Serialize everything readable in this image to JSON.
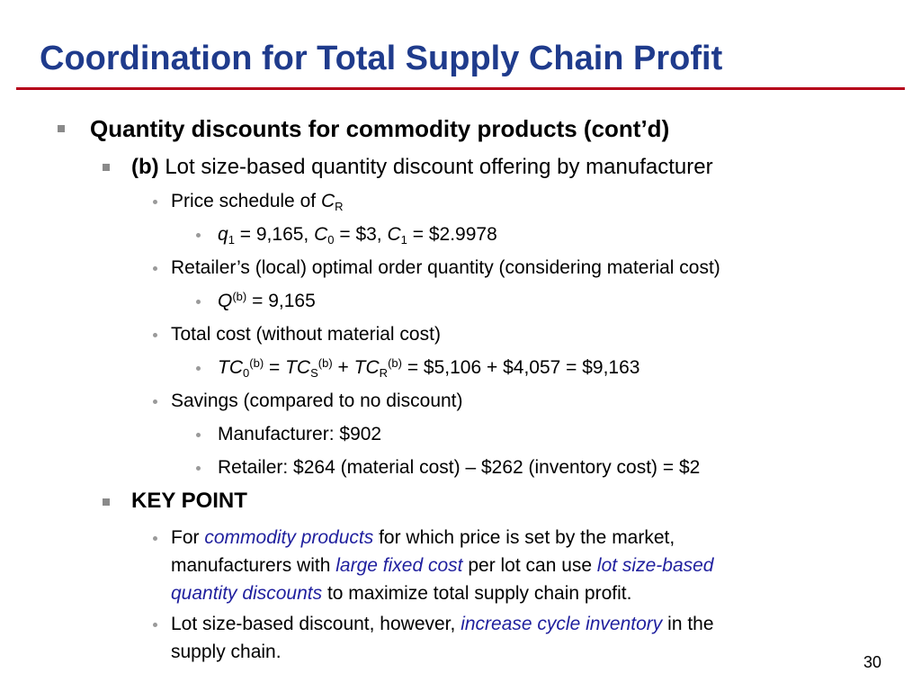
{
  "slide": {
    "title": "Coordination for Total Supply Chain Profit",
    "page_number": "30",
    "l0_heading": "Quantity discounts for commodity products (cont’d)",
    "b_label": "(b)",
    "b_text": "Lot size-based quantity discount offering by manufacturer",
    "price_schedule_text": "Price schedule of ",
    "price_schedule_var": "C",
    "price_schedule_sub": "R",
    "q1_var": "q",
    "q1_sub": "1",
    "q1_value": " = 9,165, ",
    "c0_var": "C",
    "c0_sub": "0",
    "c0_value": " = $3, ",
    "c1_var": "C",
    "c1_sub": "1",
    "c1_value": " = $2.9978",
    "retailer_opt_text": "Retailer’s (local) optimal order quantity (considering material cost)",
    "qb_var": "Q",
    "qb_sup": "(b)",
    "qb_value": " = 9,165",
    "total_cost_text": "Total cost (without material cost)",
    "tc0_var": "TC",
    "tc0_sub": "0",
    "tc0_sup": "(b)",
    "eq1": " = ",
    "tcs_var": "TC",
    "tcs_sub": "S",
    "tcs_sup": "(b)",
    "plus": " + ",
    "tcr_var": "TC",
    "tcr_sub": "R",
    "tcr_sup": "(b)",
    "tc_result": " = $5,106 + $4,057 = $9,163",
    "savings_text": "Savings (compared to no discount)",
    "manufacturer_saving": "Manufacturer: $902",
    "retailer_saving": "Retailer: $264 (material cost) – $262 (inventory cost) = $2",
    "key_point": "KEY POINT",
    "kp1_a": "For ",
    "kp1_em1": "commodity products",
    "kp1_b": " for which price is set by the market,",
    "kp1_c": "manufacturers with ",
    "kp1_em2": "large fixed cost",
    "kp1_d": " per lot can use ",
    "kp1_em3": "lot size-based",
    "kp1_em4": "quantity discounts",
    "kp1_e": " to maximize total supply chain profit.",
    "kp2_a": "Lot size-based discount, however, ",
    "kp2_em": "increase cycle inventory",
    "kp2_b": " in the",
    "kp2_c": "supply chain."
  },
  "colors": {
    "title": "#1f3b8c",
    "rule": "#b5001a",
    "emphasis": "#1f1f9e",
    "bullet": "#8a8a8a"
  }
}
